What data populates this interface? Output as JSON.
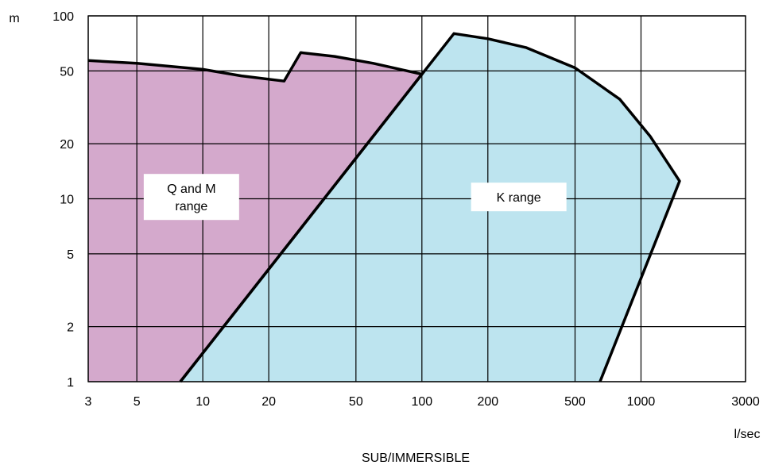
{
  "chart_data": {
    "type": "area",
    "title": "",
    "caption": "SUB/IMMERSIBLE",
    "xlabel": "l/sec",
    "ylabel": "m",
    "x_scale": "log",
    "y_scale": "log",
    "xlim": [
      3,
      3000
    ],
    "ylim": [
      1,
      100
    ],
    "grid": true,
    "x_ticks": [
      3,
      5,
      10,
      20,
      50,
      100,
      200,
      500,
      1000,
      3000
    ],
    "x_tick_labels": [
      "3",
      "5",
      "10",
      "20",
      "50",
      "100",
      "200",
      "500",
      "1000",
      "3000"
    ],
    "y_ticks": [
      1,
      2,
      5,
      10,
      20,
      50,
      100
    ],
    "y_tick_labels": [
      "1",
      "2",
      "5",
      "10",
      "20",
      "50",
      "100"
    ],
    "regions": [
      {
        "name": "Q and M range",
        "label_lines": [
          "Q and M",
          "range"
        ],
        "color": "#d4a9cc",
        "points": [
          [
            3,
            57
          ],
          [
            5,
            55
          ],
          [
            10,
            51
          ],
          [
            15,
            47
          ],
          [
            23.5,
            44
          ],
          [
            28,
            63
          ],
          [
            40,
            60
          ],
          [
            60,
            55
          ],
          [
            100,
            48
          ],
          [
            7.9,
            1
          ],
          [
            3,
            1
          ]
        ]
      },
      {
        "name": "K range",
        "label_lines": [
          "K range"
        ],
        "color": "#bde4ef",
        "points": [
          [
            7.9,
            1
          ],
          [
            140,
            80
          ],
          [
            200,
            75
          ],
          [
            300,
            67
          ],
          [
            500,
            52
          ],
          [
            800,
            35
          ],
          [
            1100,
            22
          ],
          [
            1500,
            12.5
          ],
          [
            650,
            1
          ]
        ]
      }
    ],
    "outline_color": "#000000"
  }
}
